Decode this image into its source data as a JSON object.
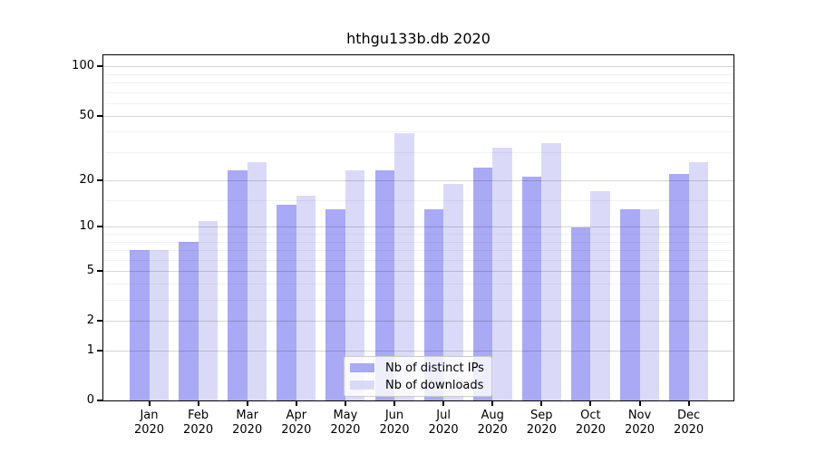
{
  "figure": {
    "title": "hthgu133b.db 2020"
  },
  "chart_data": {
    "type": "bar",
    "title": "hthgu133b.db 2020",
    "categories": [
      "Jan",
      "Feb",
      "Mar",
      "Apr",
      "May",
      "Jun",
      "Jul",
      "Aug",
      "Sep",
      "Oct",
      "Nov",
      "Dec"
    ],
    "x_year": "2020",
    "series": [
      {
        "key": "distinct-ips",
        "name": "Nb of distinct IPs",
        "color": "#a9a9f6",
        "values": [
          7,
          8,
          23,
          14,
          13,
          23,
          13,
          24,
          21,
          10,
          13,
          22
        ]
      },
      {
        "key": "downloads",
        "name": "Nb of downloads",
        "color": "#dadaf8",
        "values": [
          7,
          11,
          26,
          16,
          23,
          39,
          19,
          32,
          34,
          17,
          13,
          26
        ]
      }
    ],
    "y_axis": {
      "scale": "log1p",
      "ticks": [
        100,
        50,
        20,
        10,
        5,
        2,
        1,
        0
      ],
      "max": 117,
      "grid_major": [
        1,
        2,
        5,
        10,
        20,
        50,
        100
      ],
      "grid_minor": [
        3,
        4,
        6,
        7,
        8,
        9,
        15,
        30,
        40,
        60,
        70,
        80,
        90
      ]
    },
    "legend": {
      "position": "bottom-center"
    }
  }
}
